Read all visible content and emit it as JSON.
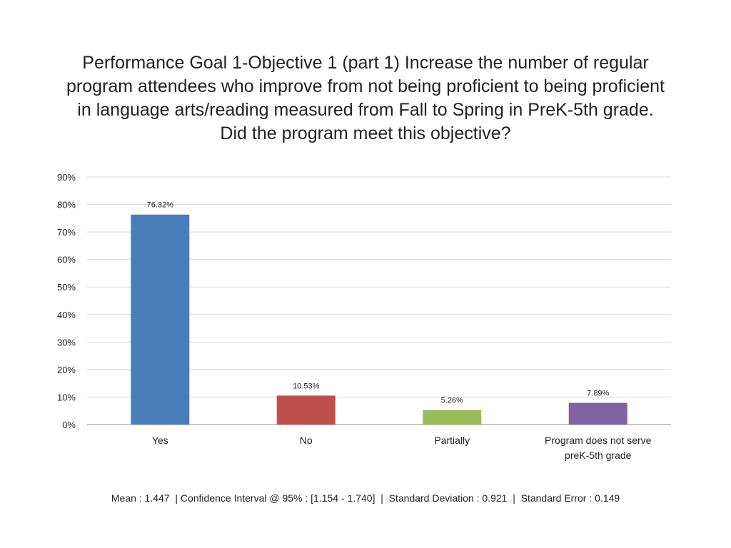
{
  "title": "Performance Goal 1-Objective 1 (part 1) Increase the number of regular program attendees who improve from not being proficient to being proficient in language arts/reading measured from Fall to Spring in PreK-5th grade. Did the program meet this objective?",
  "footer": "Mean : 1.447  | Confidence Interval @ 95% : [1.154 - 1.740]  |  Standard Deviation : 0.921  |  Standard Error : 0.149",
  "chart_data": {
    "type": "bar",
    "categories": [
      [
        "Yes"
      ],
      [
        "No"
      ],
      [
        "Partially"
      ],
      [
        "Program does not serve",
        "preK-5th grade"
      ]
    ],
    "values": [
      76.32,
      10.53,
      5.26,
      7.89
    ],
    "data_labels": [
      "76.32%",
      "10.53%",
      "5.26%",
      "7.89%"
    ],
    "colors": [
      "#4a7ebb",
      "#c0504d",
      "#9bbb59",
      "#8064a2"
    ],
    "ylim": [
      0,
      90
    ],
    "yticks": [
      0,
      10,
      20,
      30,
      40,
      50,
      60,
      70,
      80,
      90
    ],
    "ytick_labels": [
      "0%",
      "10%",
      "20%",
      "30%",
      "40%",
      "50%",
      "60%",
      "70%",
      "80%",
      "90%"
    ],
    "grid": true,
    "legend": "none"
  }
}
